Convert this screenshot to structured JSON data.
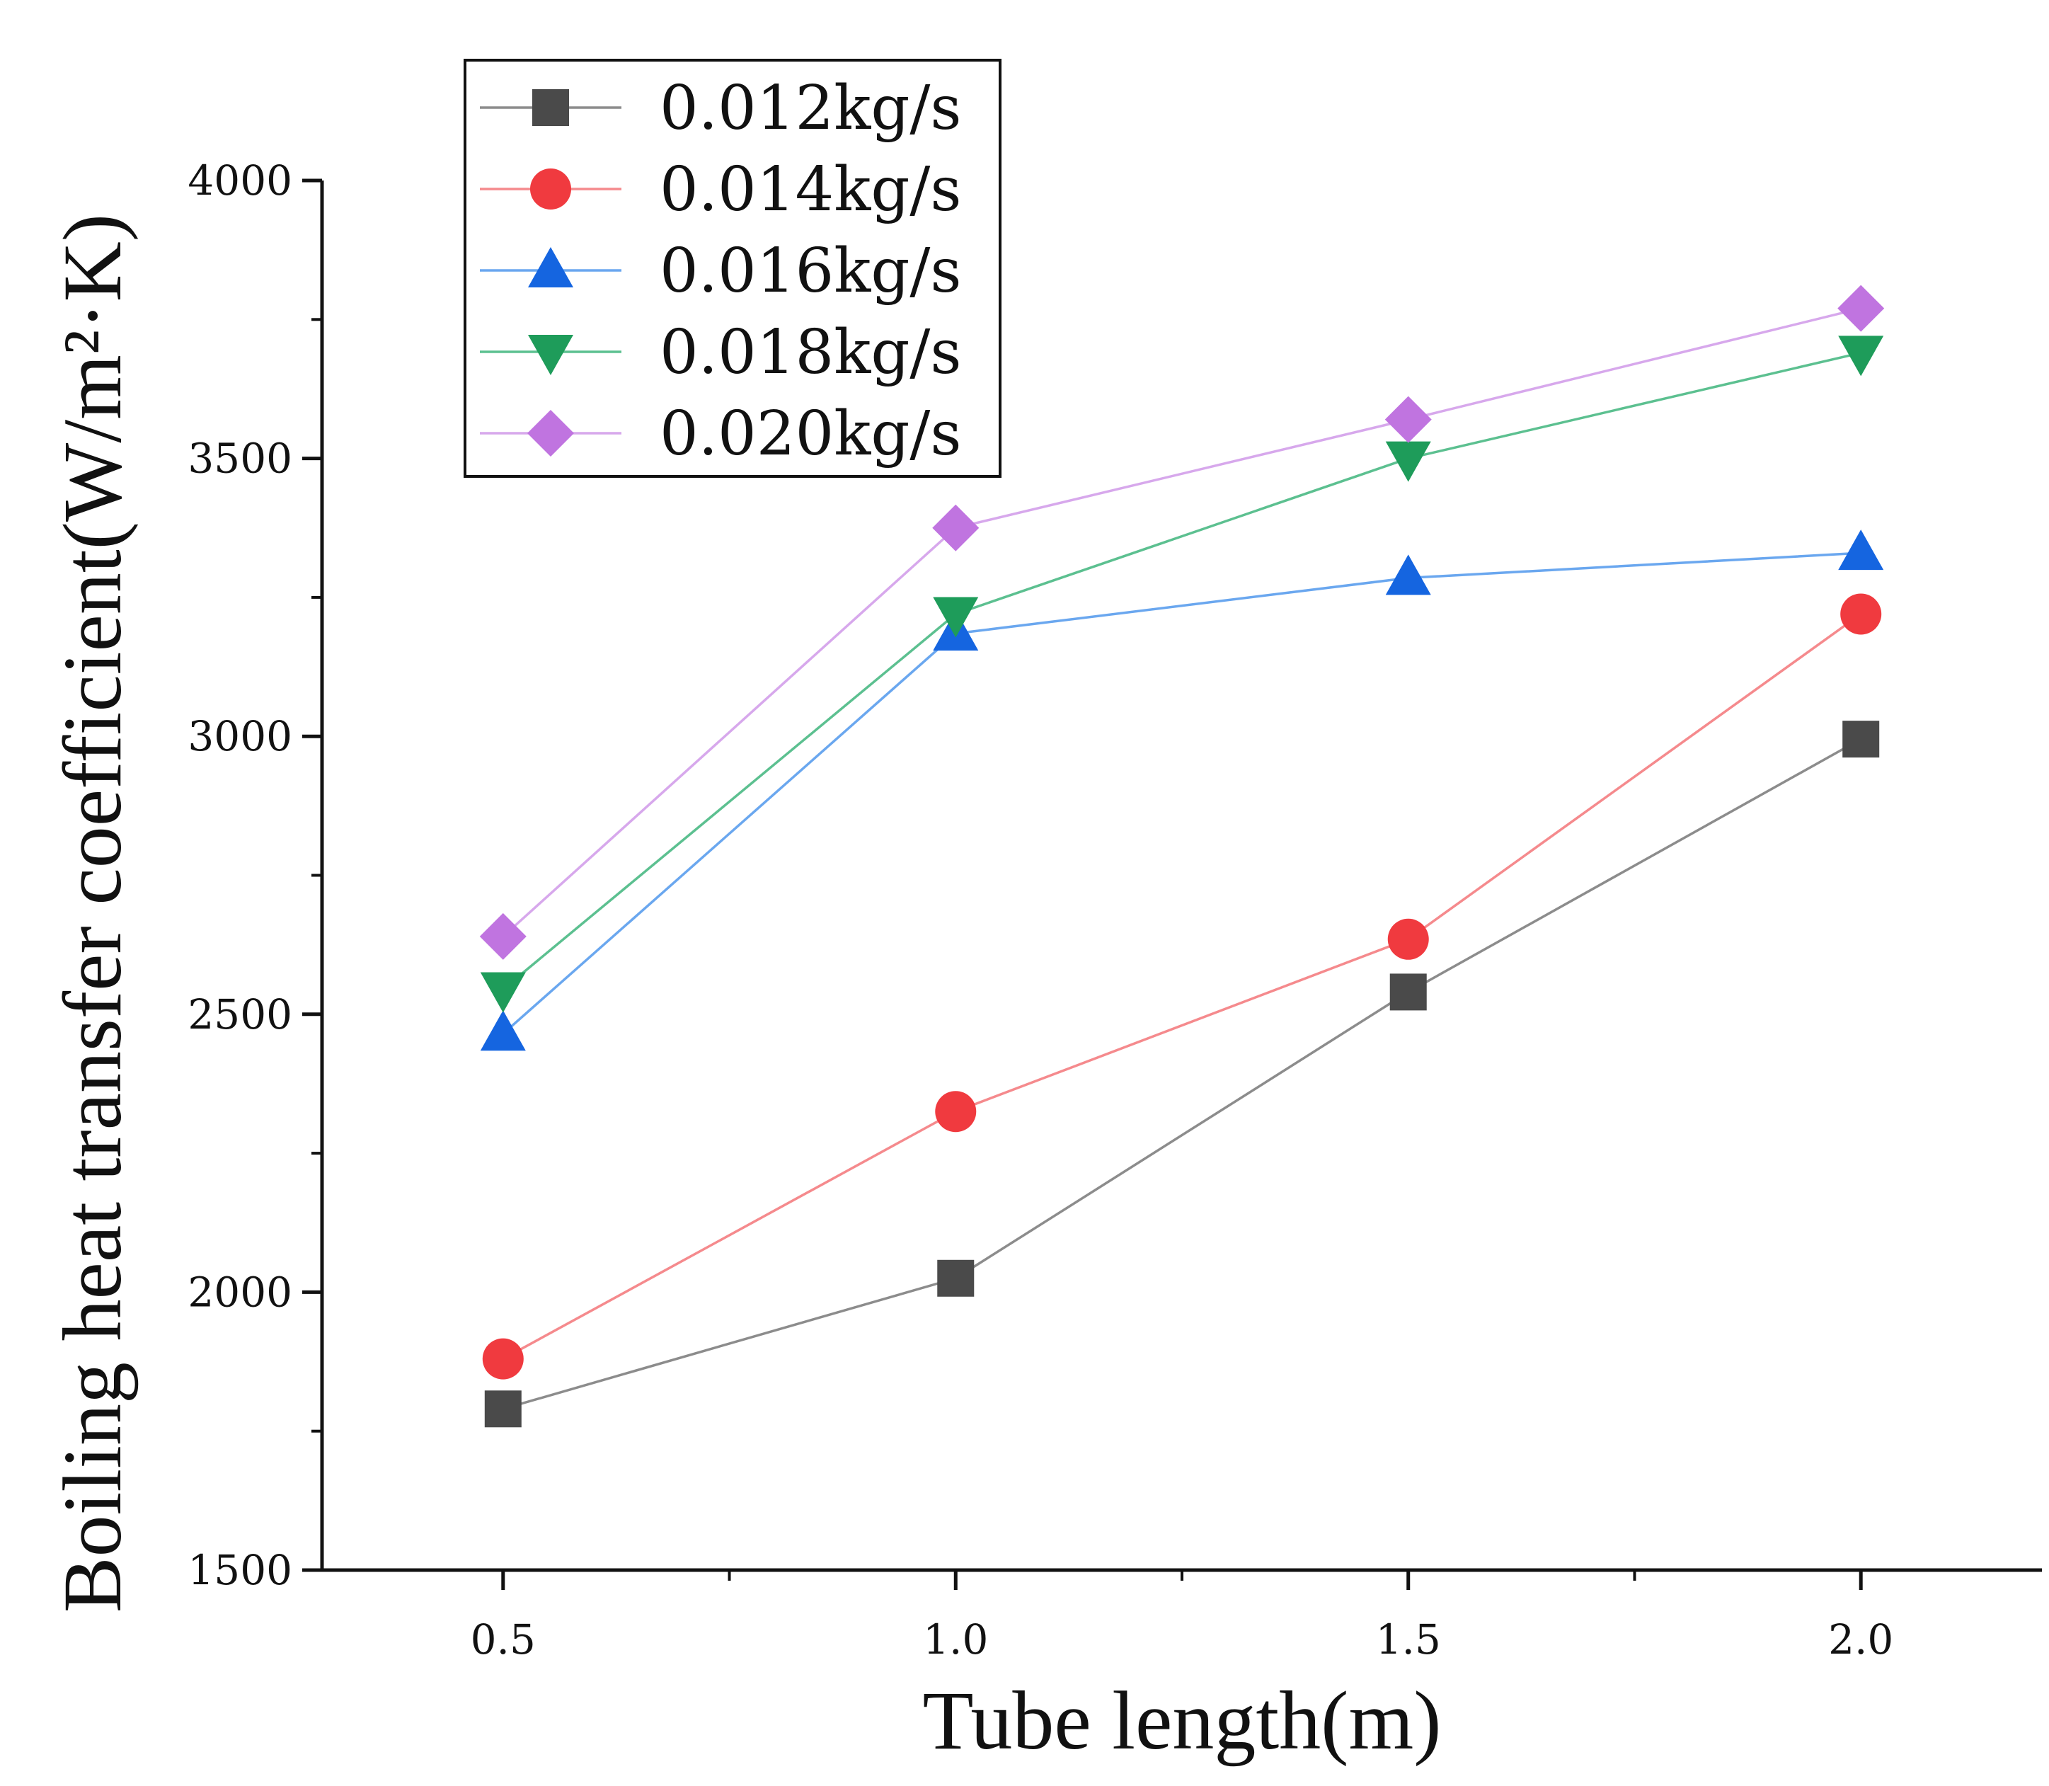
{
  "chart_data": {
    "type": "line",
    "title": "",
    "xlabel": "Tube length(m)",
    "ylabel": "Boiling heat transfer coefficient(W/m²·K)",
    "x": [
      0.5,
      1.0,
      1.5,
      2.0
    ],
    "x_tick_labels": [
      "0.5",
      "1.0",
      "1.5",
      "2.0"
    ],
    "xlim": [
      0.3,
      2.2
    ],
    "ylim": [
      1500,
      4000
    ],
    "y_ticks": [
      1500,
      2000,
      2500,
      3000,
      3500,
      4000
    ],
    "y_tick_labels": [
      "1500",
      "2000",
      "2500",
      "3000",
      "3500",
      "4000"
    ],
    "grid": false,
    "legend_position": "top-left",
    "series": [
      {
        "name": "0.012kg/s",
        "marker": "square",
        "color": "#4a4a4a",
        "values": [
          1790,
          2025,
          2540,
          2995
        ]
      },
      {
        "name": "0.014kg/s",
        "marker": "circle",
        "color": "#f03a3f",
        "values": [
          1880,
          2325,
          2635,
          3220
        ]
      },
      {
        "name": "0.016kg/s",
        "marker": "triangle-up",
        "color": "#1565e0",
        "values": [
          2465,
          3185,
          3285,
          3330
        ]
      },
      {
        "name": "0.018kg/s",
        "marker": "triangle-down",
        "color": "#1e9c5a",
        "values": [
          2545,
          3220,
          3500,
          3690
        ]
      },
      {
        "name": "0.020kg/s",
        "marker": "diamond",
        "color": "#c074e0",
        "values": [
          2640,
          3375,
          3570,
          3770
        ]
      }
    ],
    "line_colors": [
      "#8c8c8c",
      "#f58a8d",
      "#6aa7ef",
      "#5cc090",
      "#d7a8ec"
    ]
  }
}
